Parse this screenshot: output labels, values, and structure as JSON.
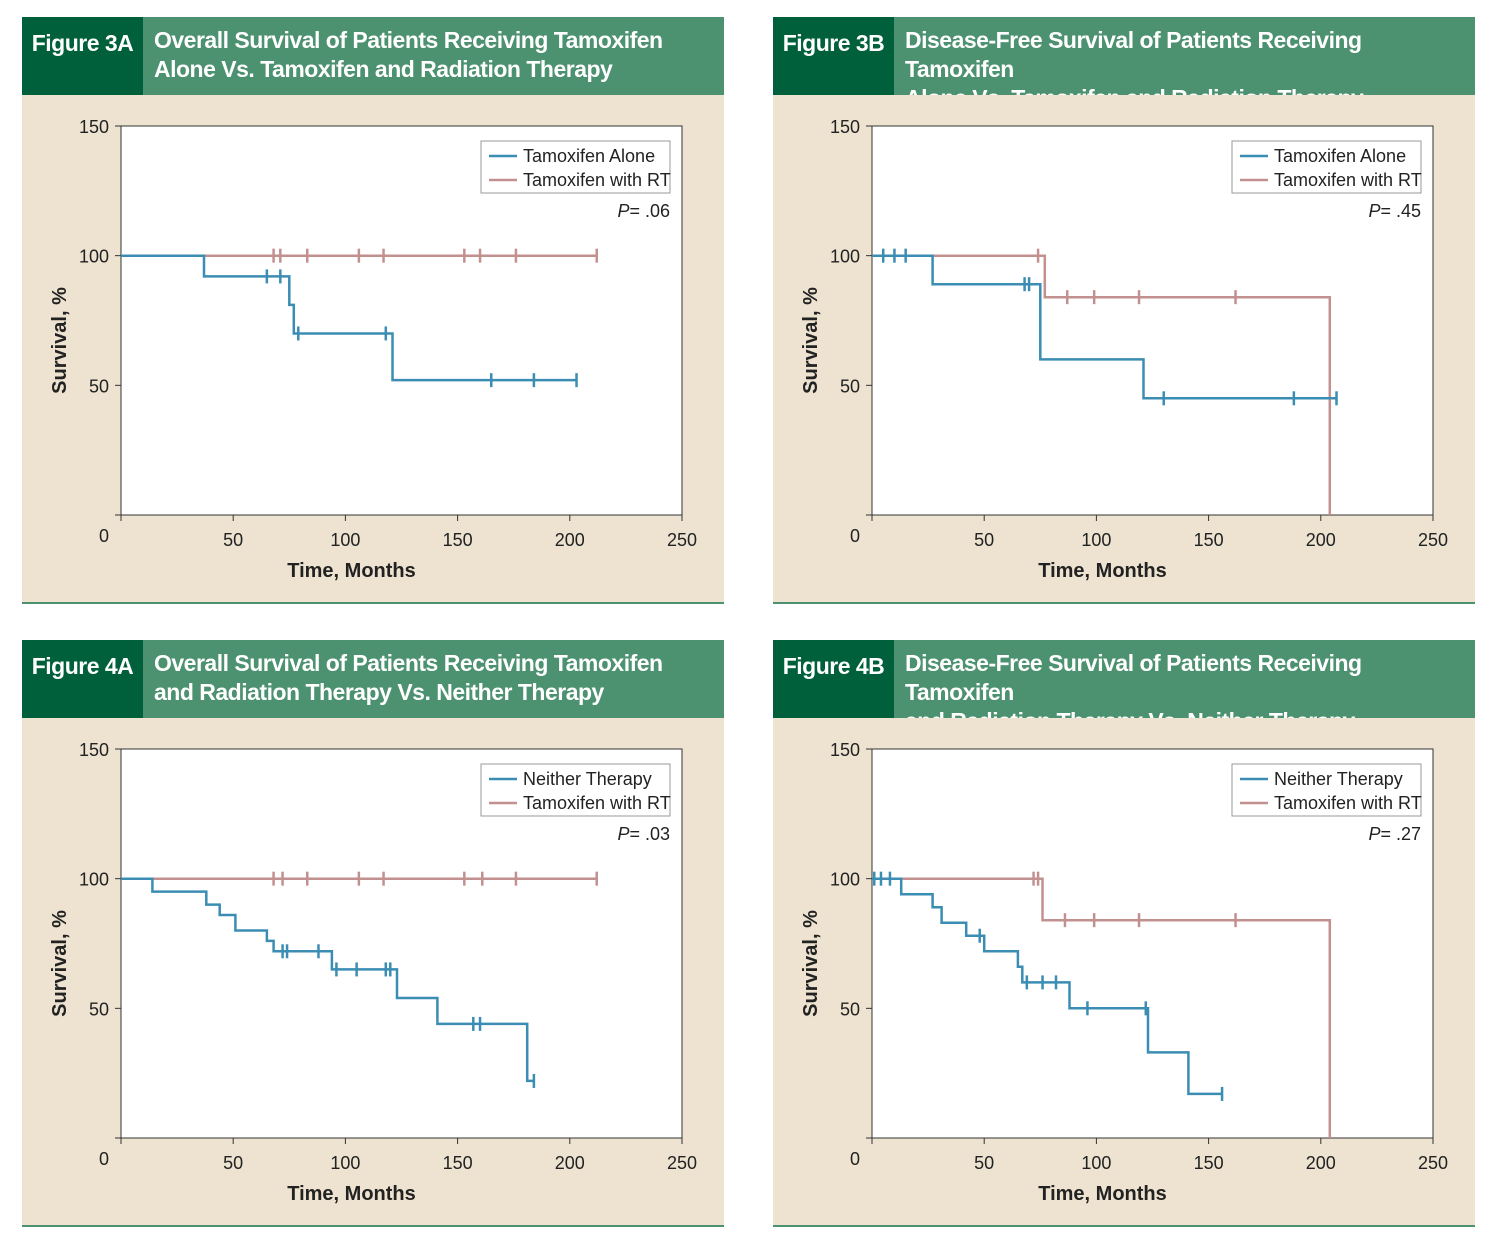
{
  "colors": {
    "header_bg": "#4c9170",
    "tag_bg": "#00603b",
    "panel_bg": "#ede3d0",
    "blue": "#3b8db3",
    "pink": "#c39090"
  },
  "chart_data": [
    {
      "id": "3A",
      "type": "line",
      "step": true,
      "figure_label": "Figure 3A",
      "title_line1": "Overall Survival of Patients Receiving Tamoxifen",
      "title_line2": "Alone Vs. Tamoxifen and Radiation Therapy",
      "xlabel": "Time, Months",
      "ylabel": "Survival, %",
      "xlim": [
        0,
        250
      ],
      "ylim": [
        0,
        150
      ],
      "xticks": [
        0,
        50,
        100,
        150,
        200,
        250
      ],
      "yticks": [
        0,
        50,
        100,
        150
      ],
      "legend_position": "top-right",
      "pvalue_prefix": "P",
      "pvalue_value": "= .06",
      "series": [
        {
          "name": "Tamoxifen Alone",
          "color": "#3b8db3",
          "steps": [
            [
              0,
              100
            ],
            [
              37,
              100
            ],
            [
              37,
              92
            ],
            [
              75,
              92
            ],
            [
              75,
              81
            ],
            [
              77,
              81
            ],
            [
              77,
              70
            ],
            [
              121,
              70
            ],
            [
              121,
              52
            ],
            [
              203,
              52
            ]
          ],
          "censors": [
            [
              65,
              92
            ],
            [
              71,
              92
            ],
            [
              79,
              70
            ],
            [
              118,
              70
            ],
            [
              165,
              52
            ],
            [
              184,
              52
            ],
            [
              203,
              52
            ]
          ]
        },
        {
          "name": "Tamoxifen with RT",
          "color": "#c39090",
          "steps": [
            [
              0,
              100
            ],
            [
              212,
              100
            ]
          ],
          "censors": [
            [
              68,
              100
            ],
            [
              71,
              100
            ],
            [
              83,
              100
            ],
            [
              106,
              100
            ],
            [
              117,
              100
            ],
            [
              153,
              100
            ],
            [
              160,
              100
            ],
            [
              176,
              100
            ],
            [
              212,
              100
            ]
          ]
        }
      ]
    },
    {
      "id": "3B",
      "type": "line",
      "step": true,
      "figure_label": "Figure 3B",
      "title_line1": "Disease-Free Survival of Patients Receiving Tamoxifen",
      "title_line2": "Alone Vs. Tamoxifen and Radiation Therapy",
      "xlabel": "Time, Months",
      "ylabel": "Survival, %",
      "xlim": [
        0,
        250
      ],
      "ylim": [
        0,
        150
      ],
      "xticks": [
        0,
        50,
        100,
        150,
        200,
        250
      ],
      "yticks": [
        0,
        50,
        100,
        150
      ],
      "legend_position": "top-right",
      "pvalue_prefix": "P",
      "pvalue_value": "= .45",
      "series": [
        {
          "name": "Tamoxifen Alone",
          "color": "#3b8db3",
          "steps": [
            [
              0,
              100
            ],
            [
              27,
              100
            ],
            [
              27,
              89
            ],
            [
              75,
              89
            ],
            [
              75,
              60
            ],
            [
              121,
              60
            ],
            [
              121,
              45
            ],
            [
              207,
              45
            ]
          ],
          "censors": [
            [
              5,
              100
            ],
            [
              10,
              100
            ],
            [
              15,
              100
            ],
            [
              68,
              89
            ],
            [
              70,
              89
            ],
            [
              130,
              45
            ],
            [
              188,
              45
            ],
            [
              207,
              45
            ]
          ]
        },
        {
          "name": "Tamoxifen with RT",
          "color": "#c39090",
          "steps": [
            [
              0,
              100
            ],
            [
              77,
              100
            ],
            [
              77,
              84
            ],
            [
              204,
              84
            ],
            [
              204,
              0
            ]
          ],
          "censors": [
            [
              74,
              100
            ],
            [
              87,
              84
            ],
            [
              99,
              84
            ],
            [
              119,
              84
            ],
            [
              162,
              84
            ]
          ]
        }
      ]
    },
    {
      "id": "4A",
      "type": "line",
      "step": true,
      "figure_label": "Figure 4A",
      "title_line1": "Overall Survival of Patients Receiving Tamoxifen",
      "title_line2": "and Radiation Therapy Vs. Neither Therapy",
      "xlabel": "Time, Months",
      "ylabel": "Survival, %",
      "xlim": [
        0,
        250
      ],
      "ylim": [
        0,
        150
      ],
      "xticks": [
        0,
        50,
        100,
        150,
        200,
        250
      ],
      "yticks": [
        0,
        50,
        100,
        150
      ],
      "legend_position": "top-right",
      "pvalue_prefix": "P",
      "pvalue_value": "= .03",
      "series": [
        {
          "name": "Neither Therapy",
          "color": "#3b8db3",
          "steps": [
            [
              0,
              100
            ],
            [
              14,
              100
            ],
            [
              14,
              95
            ],
            [
              38,
              95
            ],
            [
              38,
              90
            ],
            [
              44,
              90
            ],
            [
              44,
              86
            ],
            [
              51,
              86
            ],
            [
              51,
              80
            ],
            [
              65,
              80
            ],
            [
              65,
              76
            ],
            [
              68,
              76
            ],
            [
              68,
              72
            ],
            [
              94,
              72
            ],
            [
              94,
              65
            ],
            [
              123,
              65
            ],
            [
              123,
              54
            ],
            [
              141,
              54
            ],
            [
              141,
              44
            ],
            [
              181,
              44
            ],
            [
              181,
              22
            ],
            [
              184,
              22
            ]
          ],
          "censors": [
            [
              72,
              72
            ],
            [
              74,
              72
            ],
            [
              88,
              72
            ],
            [
              96,
              65
            ],
            [
              105,
              65
            ],
            [
              118,
              65
            ],
            [
              120,
              65
            ],
            [
              157,
              44
            ],
            [
              160,
              44
            ],
            [
              184,
              22
            ]
          ]
        },
        {
          "name": "Tamoxifen with RT",
          "color": "#c39090",
          "steps": [
            [
              0,
              100
            ],
            [
              212,
              100
            ]
          ],
          "censors": [
            [
              68,
              100
            ],
            [
              72,
              100
            ],
            [
              83,
              100
            ],
            [
              106,
              100
            ],
            [
              117,
              100
            ],
            [
              153,
              100
            ],
            [
              161,
              100
            ],
            [
              176,
              100
            ],
            [
              212,
              100
            ]
          ]
        }
      ]
    },
    {
      "id": "4B",
      "type": "line",
      "step": true,
      "figure_label": "Figure 4B",
      "title_line1": "Disease-Free Survival of Patients Receiving Tamoxifen",
      "title_line2": "and Radiation Therapy Vs. Neither Therapy",
      "xlabel": "Time, Months",
      "ylabel": "Survival, %",
      "xlim": [
        0,
        250
      ],
      "ylim": [
        0,
        150
      ],
      "xticks": [
        0,
        50,
        100,
        150,
        200,
        250
      ],
      "yticks": [
        0,
        50,
        100,
        150
      ],
      "legend_position": "top-right",
      "pvalue_prefix": "P",
      "pvalue_value": "= .27",
      "series": [
        {
          "name": "Neither Therapy",
          "color": "#3b8db3",
          "steps": [
            [
              0,
              100
            ],
            [
              13,
              100
            ],
            [
              13,
              94
            ],
            [
              27,
              94
            ],
            [
              27,
              89
            ],
            [
              31,
              89
            ],
            [
              31,
              83
            ],
            [
              42,
              83
            ],
            [
              42,
              78
            ],
            [
              50,
              78
            ],
            [
              50,
              72
            ],
            [
              65,
              72
            ],
            [
              65,
              66
            ],
            [
              67,
              66
            ],
            [
              67,
              60
            ],
            [
              88,
              60
            ],
            [
              88,
              50
            ],
            [
              123,
              50
            ],
            [
              123,
              33
            ],
            [
              141,
              33
            ],
            [
              141,
              17
            ],
            [
              156,
              17
            ]
          ],
          "censors": [
            [
              1,
              100
            ],
            [
              4,
              100
            ],
            [
              8,
              100
            ],
            [
              48,
              78
            ],
            [
              69,
              60
            ],
            [
              76,
              60
            ],
            [
              82,
              60
            ],
            [
              96,
              50
            ],
            [
              122,
              50
            ],
            [
              156,
              17
            ]
          ]
        },
        {
          "name": "Tamoxifen with RT",
          "color": "#c39090",
          "steps": [
            [
              0,
              100
            ],
            [
              76,
              100
            ],
            [
              76,
              84
            ],
            [
              204,
              84
            ],
            [
              204,
              0
            ]
          ],
          "censors": [
            [
              72,
              100
            ],
            [
              74,
              100
            ],
            [
              86,
              84
            ],
            [
              99,
              84
            ],
            [
              119,
              84
            ],
            [
              162,
              84
            ]
          ]
        }
      ]
    }
  ]
}
